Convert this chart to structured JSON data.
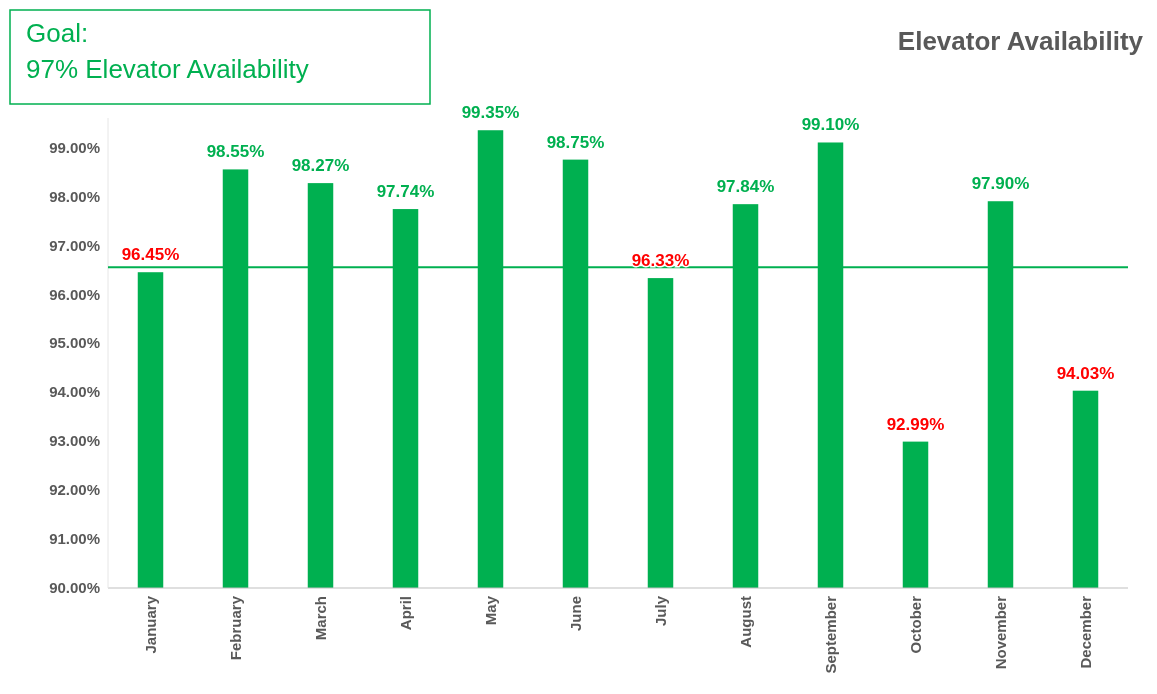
{
  "chart_data": {
    "type": "bar",
    "title": "Elevator Availability",
    "annotations": [
      "Goal:",
      "97% Elevator Availability"
    ],
    "categories": [
      "January",
      "February",
      "March",
      "April",
      "May",
      "June",
      "July",
      "August",
      "September",
      "October",
      "November",
      "December"
    ],
    "values": [
      96.45,
      98.55,
      98.27,
      97.74,
      99.35,
      98.75,
      96.33,
      97.84,
      99.1,
      92.99,
      97.9,
      94.03
    ],
    "value_labels": [
      "96.45%",
      "98.55%",
      "98.27%",
      "97.74%",
      "99.35%",
      "98.75%",
      "96.33%",
      "97.84%",
      "99.10%",
      "92.99%",
      "97.90%",
      "94.03%"
    ],
    "color": "#00b050",
    "ylim": [
      90,
      99.6
    ],
    "yticks": [
      {
        "value": 90,
        "label": "90.00%"
      },
      {
        "value": 91,
        "label": "91.00%"
      },
      {
        "value": 92,
        "label": "92.00%"
      },
      {
        "value": 93,
        "label": "93.00%"
      },
      {
        "value": 94,
        "label": "94.00%"
      },
      {
        "value": 95,
        "label": "95.00%"
      },
      {
        "value": 96,
        "label": "96.00%"
      },
      {
        "value": 97,
        "label": "97.00%"
      },
      {
        "value": 98,
        "label": "98.00%"
      },
      {
        "value": 99,
        "label": "99.00%"
      }
    ],
    "ref_lines": [
      {
        "axis": "y",
        "value": 96.55,
        "color": "#00b050"
      }
    ],
    "grid": false
  }
}
